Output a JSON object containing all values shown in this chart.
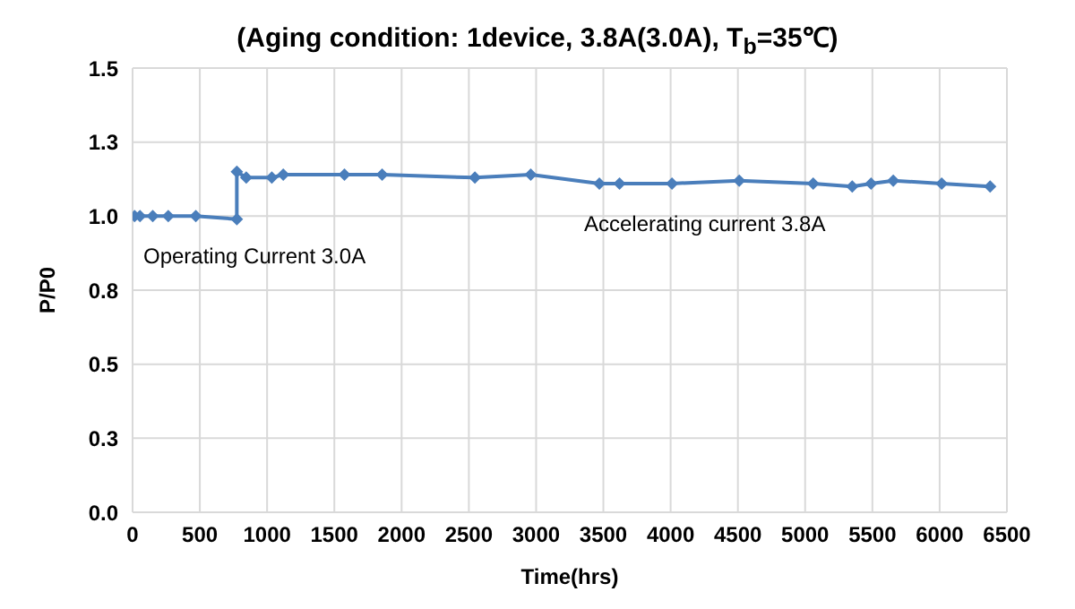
{
  "chart_data": {
    "type": "line",
    "title": "(Aging condition:  1device, 3.8A(3.0A), T$_{b}$=35℃)",
    "xlabel": "Time(hrs)",
    "ylabel": "P/P0",
    "x": [
      15,
      55,
      150,
      265,
      470,
      775,
      775,
      845,
      1035,
      1120,
      1575,
      1855,
      2545,
      2960,
      3470,
      3620,
      4010,
      4510,
      5060,
      5350,
      5490,
      5655,
      6015,
      6375
    ],
    "series": [
      {
        "color": "#4a7ebb",
        "values": [
          1.0,
          1.0,
          1.0,
          1.0,
          1.0,
          0.99,
          1.15,
          1.13,
          1.13,
          1.14,
          1.14,
          1.14,
          1.13,
          1.14,
          1.11,
          1.11,
          1.11,
          1.12,
          1.11,
          1.1,
          1.11,
          1.12,
          1.11,
          1.1
        ]
      }
    ],
    "xlim": [
      0,
      6500
    ],
    "xticks": [
      0,
      500,
      1000,
      1500,
      2000,
      2500,
      3000,
      3500,
      4000,
      4500,
      5000,
      5500,
      6000,
      6500
    ],
    "ylim": [
      0,
      1.5
    ],
    "yticks": [
      {
        "value": 0,
        "label": "0.0"
      },
      {
        "value": 0.25,
        "label": "0.3"
      },
      {
        "value": 0.5,
        "label": "0.5"
      },
      {
        "value": 0.75,
        "label": "0.8"
      },
      {
        "value": 1,
        "label": "1.0"
      },
      {
        "value": 1.25,
        "label": "1.3"
      },
      {
        "value": 1.5,
        "label": "1.5"
      }
    ],
    "grid": true,
    "marker": "diamond",
    "line_style": "solid",
    "annotations": [
      "Operating Current 3.0A",
      "Accelerating current 3.8A"
    ]
  }
}
